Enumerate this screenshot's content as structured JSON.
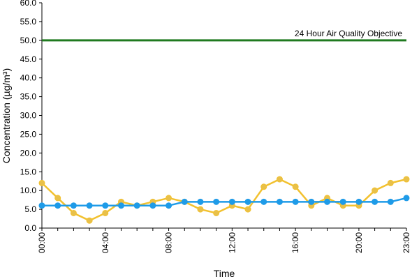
{
  "chart_data": {
    "type": "line",
    "title": "",
    "xlabel": "Time",
    "ylabel": "Concentration (µg/m³)",
    "ylim": [
      0,
      60
    ],
    "y_tick_step": 5,
    "x": [
      "00:00",
      "01:00",
      "02:00",
      "03:00",
      "04:00",
      "05:00",
      "06:00",
      "07:00",
      "08:00",
      "09:00",
      "10:00",
      "11:00",
      "12:00",
      "13:00",
      "14:00",
      "15:00",
      "16:00",
      "17:00",
      "18:00",
      "19:00",
      "20:00",
      "21:00",
      "22:00",
      "23:00"
    ],
    "x_tick_labels": [
      "00:00",
      "04:00",
      "08:00",
      "12:00",
      "16:00",
      "20:00",
      "23:00"
    ],
    "grid": false,
    "series": [
      {
        "color": "#F2C12E",
        "marker_color": "#E8C04A",
        "values": [
          12,
          8,
          4,
          2,
          4,
          7,
          6,
          7,
          8,
          7,
          5,
          4,
          6,
          5,
          11,
          13,
          11,
          6,
          8,
          6,
          6,
          10,
          12,
          13
        ]
      },
      {
        "color": "#1E9BE8",
        "marker_color": "#1E9BE8",
        "values": [
          6,
          6,
          6,
          6,
          6,
          6,
          6,
          6,
          6,
          7,
          7,
          7,
          7,
          7,
          7,
          7,
          7,
          7,
          7,
          7,
          7,
          7,
          7,
          8
        ]
      }
    ],
    "reference_line": {
      "label": "24 Hour Air Quality Objective",
      "value": 50,
      "color": "#1F7A1F"
    }
  }
}
